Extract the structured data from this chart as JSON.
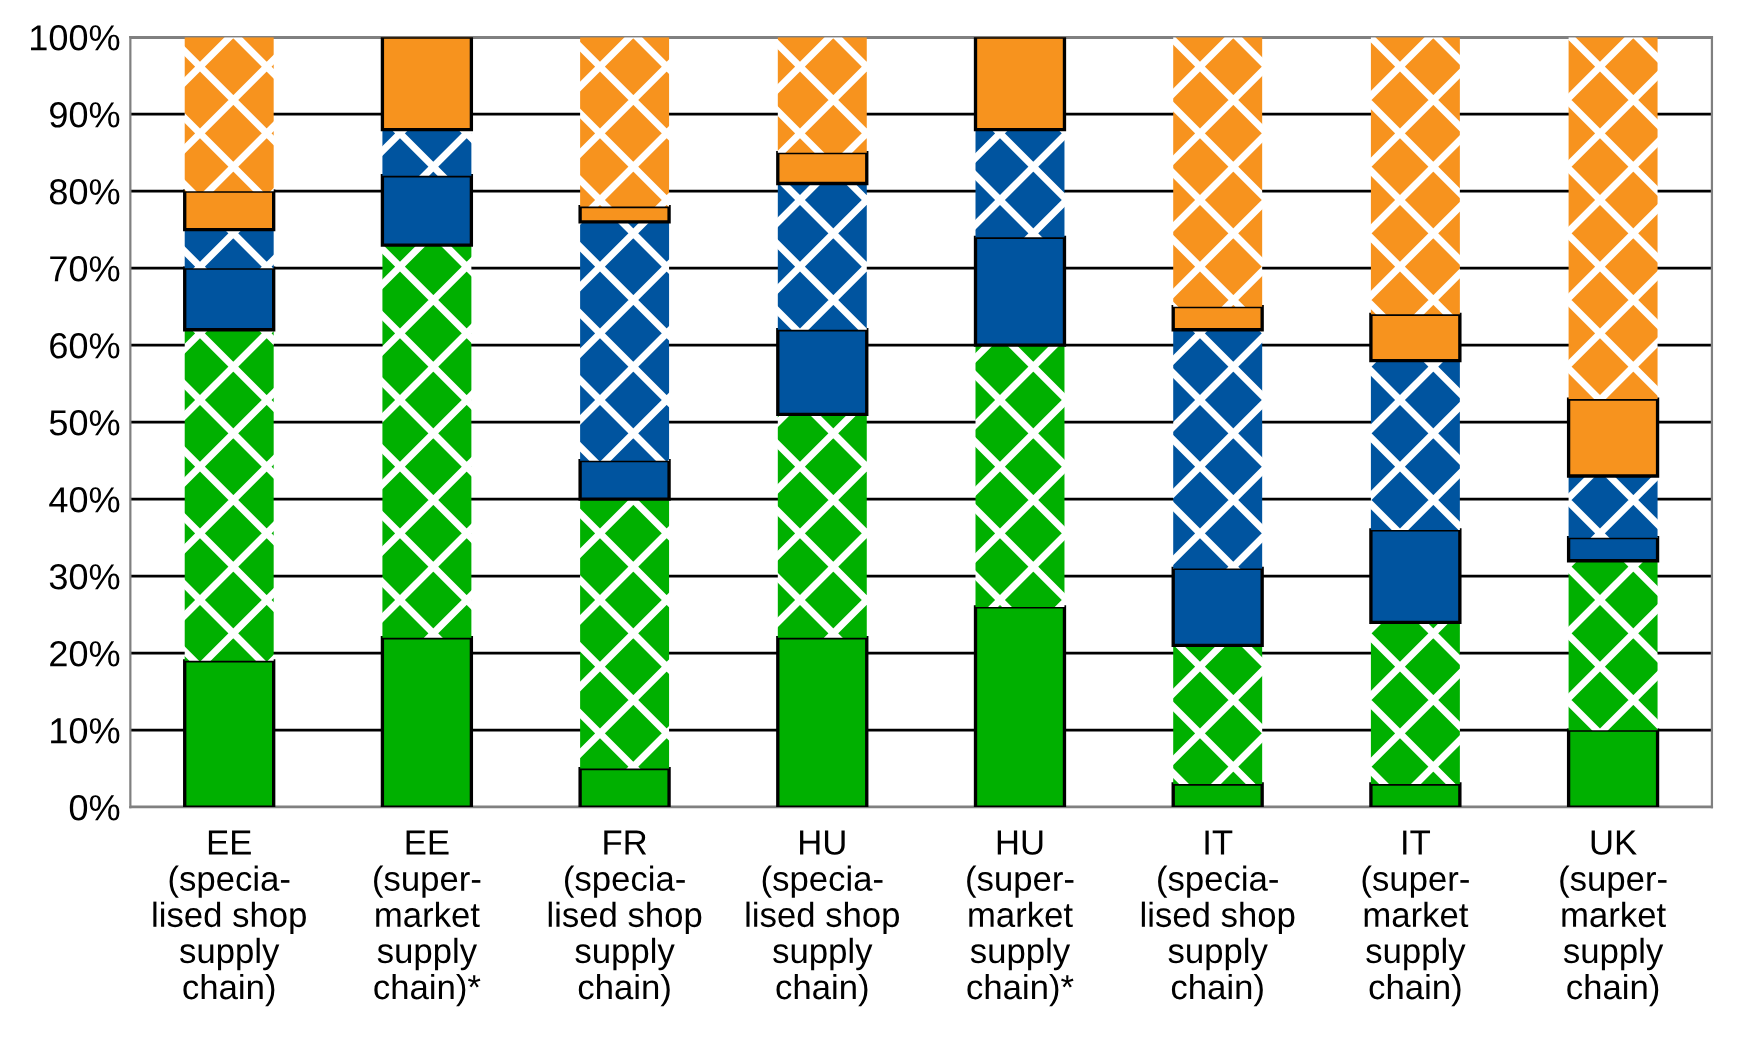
{
  "chart_data": {
    "type": "bar",
    "stacked": true,
    "categories": [
      "EE\n(specia-\nlised shop\nsupply\nchain)",
      "EE\n(super-\nmarket\nsupply\nchain)*",
      "FR\n(specia-\nlised shop\nsupply\nchain)",
      "HU\n(specia-\nlised shop\nsupply\nchain)",
      "HU\n(super-\nmarket\nsupply\nchain)*",
      "IT\n(specia-\nlised shop\nsupply\nchain)",
      "IT\n(super-\nmarket\nsupply\nchain)",
      "UK\n(super-\nmarket\nsupply\nchain)"
    ],
    "series": [
      {
        "color": "#00b000",
        "values": [
          19,
          22,
          5,
          22,
          26,
          3,
          3,
          10
        ]
      },
      {
        "color": "#00b000",
        "values": [
          43,
          51,
          35,
          29,
          34,
          18,
          21,
          22
        ]
      },
      {
        "color": "#00549f",
        "values": [
          8,
          9,
          5,
          11,
          14,
          10,
          12,
          3
        ]
      },
      {
        "color": "#00549f",
        "values": [
          5,
          6,
          31,
          19,
          14,
          31,
          22,
          8
        ]
      },
      {
        "color": "#f7931e",
        "values": [
          5,
          12,
          2,
          4,
          12,
          3,
          6,
          10
        ]
      },
      {
        "color": "#f7931e",
        "values": [
          20,
          null,
          22,
          15,
          null,
          35,
          36,
          47
        ]
      }
    ],
    "ylim": [
      0,
      100
    ],
    "yticks": [
      {
        "value": 0,
        "label": "0%"
      },
      {
        "value": 10,
        "label": "10%"
      },
      {
        "value": 20,
        "label": "20%"
      },
      {
        "value": 30,
        "label": "30%"
      },
      {
        "value": 40,
        "label": "40%"
      },
      {
        "value": 50,
        "label": "50%"
      },
      {
        "value": 60,
        "label": "60%"
      },
      {
        "value": 70,
        "label": "70%"
      },
      {
        "value": 80,
        "label": "80%"
      },
      {
        "value": 90,
        "label": "90%"
      },
      {
        "value": 100,
        "label": "100%"
      }
    ],
    "grid": "y",
    "legend": false
  }
}
